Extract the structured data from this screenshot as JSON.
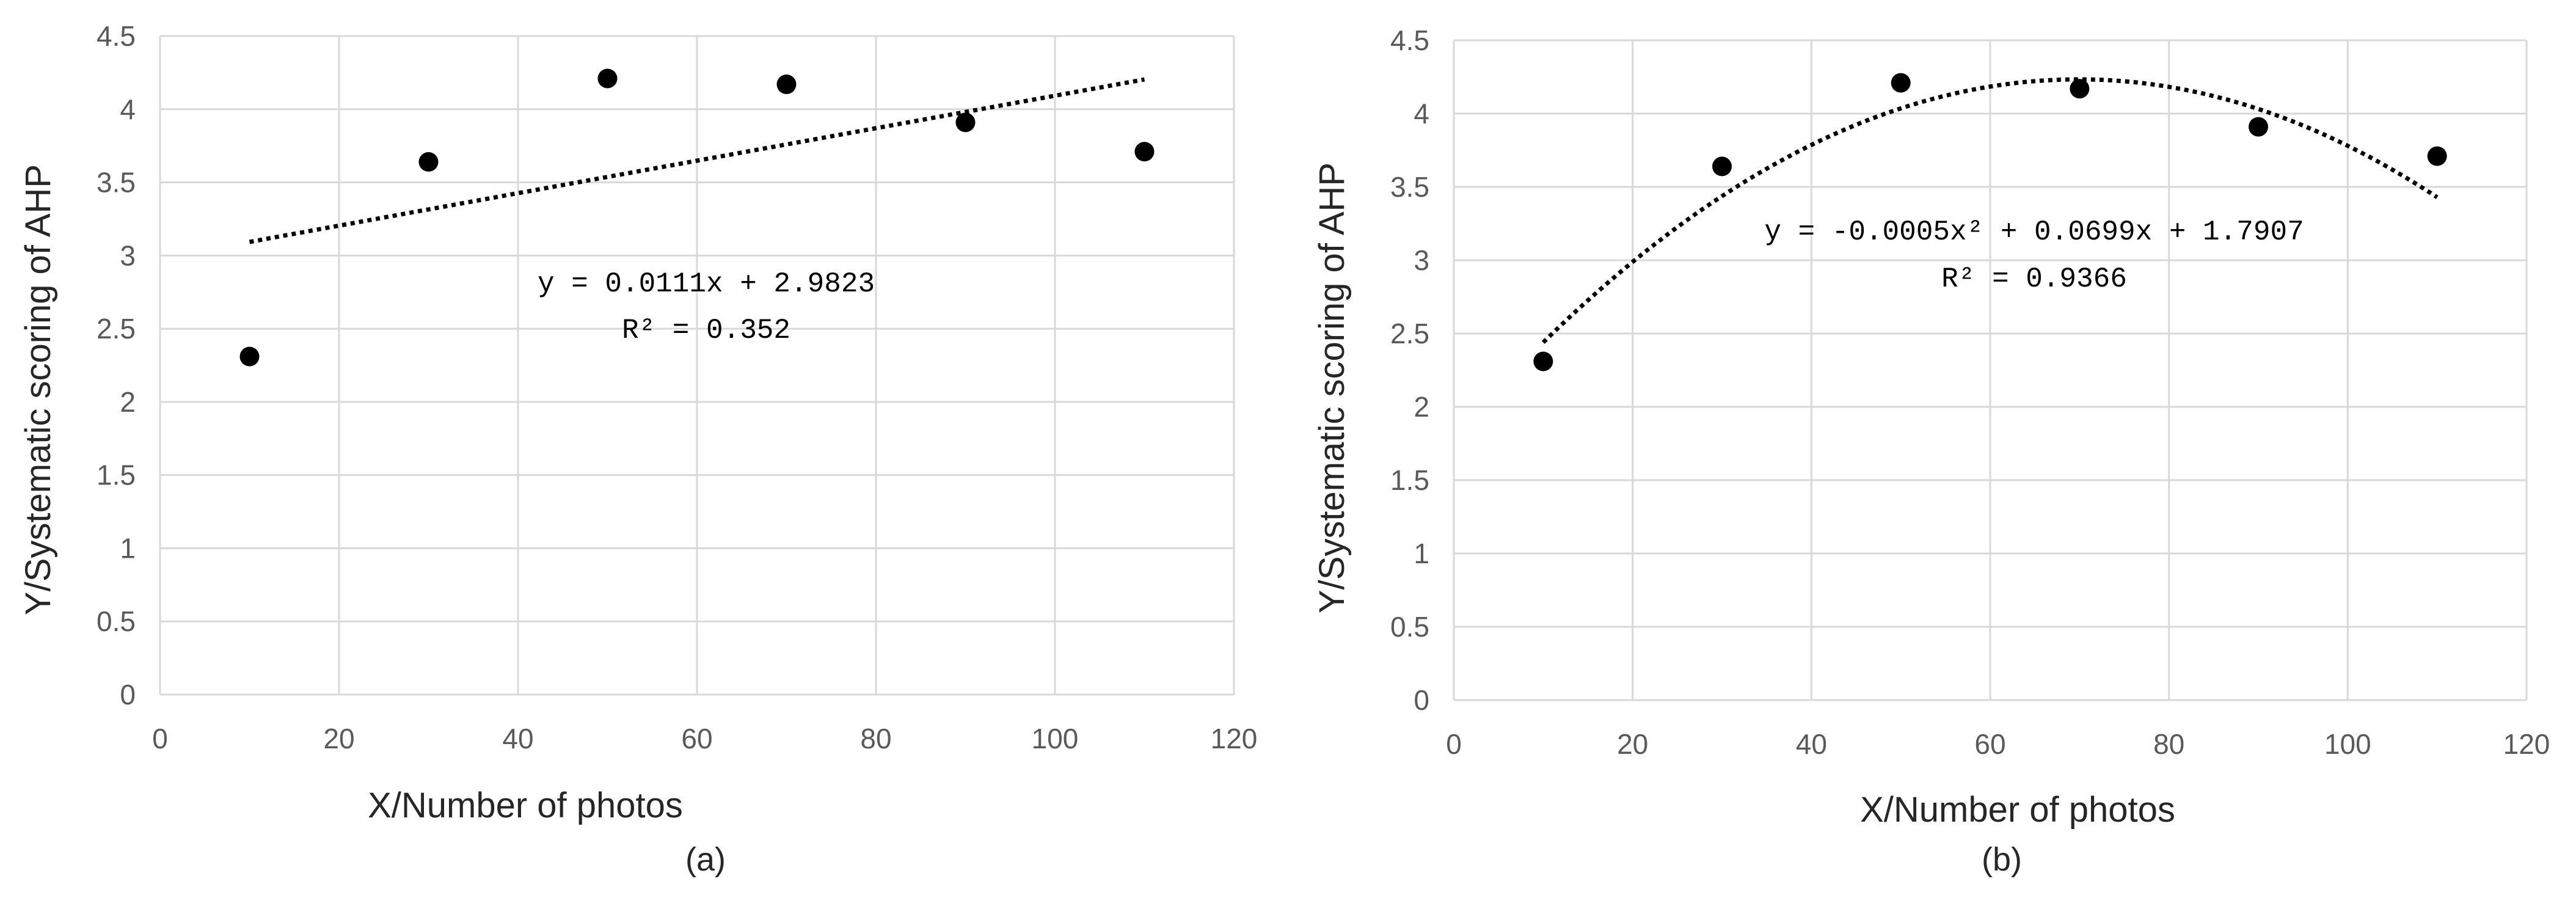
{
  "chart_data": [
    {
      "type": "scatter",
      "caption": "(a)",
      "xlabel": "X/Number of photos",
      "ylabel": "Y/Systematic scoring of AHP",
      "xlim": [
        0,
        120
      ],
      "ylim": [
        0,
        4.5
      ],
      "xticks": [
        "0",
        "20",
        "40",
        "60",
        "80",
        "100",
        "120"
      ],
      "yticks": [
        "0",
        "0.5",
        "1",
        "1.5",
        "2",
        "2.5",
        "3",
        "3.5",
        "4",
        "4.5"
      ],
      "grid": true,
      "legend": "none",
      "series": [
        {
          "x": [
            10,
            30,
            50,
            70,
            90,
            110
          ],
          "y": [
            2.31,
            3.64,
            4.21,
            4.17,
            3.91,
            3.71
          ]
        }
      ],
      "trendline": {
        "kind": "linear",
        "coefficients": [
          2.9823,
          0.0111
        ],
        "x_range": [
          10,
          110
        ],
        "style": "dotted"
      },
      "equation": "y = 0.0111x + 2.9823",
      "r2_label": "R² = 0.352"
    },
    {
      "type": "scatter",
      "caption": "(b)",
      "xlabel": "X/Number of photos",
      "ylabel": "Y/Systematic scoring of AHP",
      "xlim": [
        0,
        120
      ],
      "ylim": [
        0,
        4.5
      ],
      "xticks": [
        "0",
        "20",
        "40",
        "60",
        "80",
        "100",
        "120"
      ],
      "yticks": [
        "0",
        "0.5",
        "1",
        "1.5",
        "2",
        "2.5",
        "3",
        "3.5",
        "4",
        "4.5"
      ],
      "grid": true,
      "legend": "none",
      "series": [
        {
          "x": [
            10,
            30,
            50,
            70,
            90,
            110
          ],
          "y": [
            2.31,
            3.64,
            4.21,
            4.17,
            3.91,
            3.71
          ]
        }
      ],
      "trendline": {
        "kind": "polynomial",
        "coefficients": [
          1.7907,
          0.0699,
          -0.0005
        ],
        "x_range": [
          10,
          110
        ],
        "style": "dotted"
      },
      "equation": "y = -0.0005x² + 0.0699x + 1.7907",
      "r2_label": "R² = 0.9366"
    }
  ]
}
